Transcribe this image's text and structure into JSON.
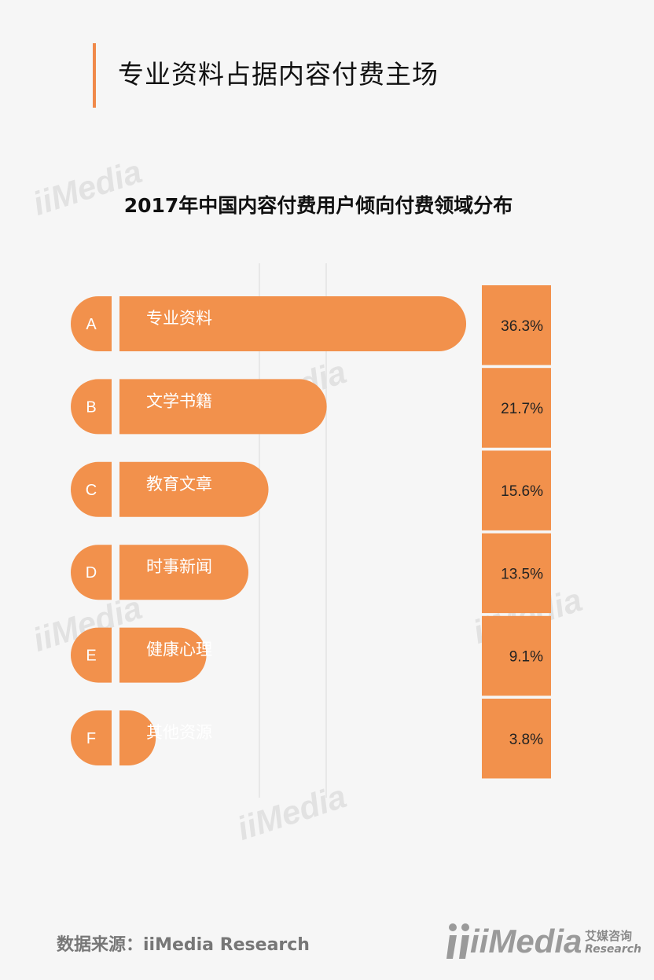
{
  "header": {
    "title": "专业资料占据内容付费主场"
  },
  "watermark": "iiMedia",
  "footer": {
    "source": "数据来源：iiMedia Research",
    "logo_main": "iiMedia",
    "logo_cn": "艾媒咨询",
    "logo_en": "Research"
  },
  "colors": {
    "accent": "#f0894a",
    "bar": "#f2914c",
    "value_box": "#f2914c"
  },
  "chart_data": {
    "type": "bar",
    "orientation": "horizontal",
    "title": "2017年中国内容付费用户倾向付费领域分布",
    "letters": [
      "A",
      "B",
      "C",
      "D",
      "E",
      "F"
    ],
    "categories": [
      "专业资料",
      "文学书籍",
      "教育文章",
      "时事新闻",
      "健康心理",
      "其他资源"
    ],
    "values": [
      36.3,
      21.7,
      15.6,
      13.5,
      9.1,
      3.8
    ],
    "value_labels": [
      "36.3%",
      "21.7%",
      "15.6%",
      "13.5%",
      "9.1%",
      "3.8%"
    ],
    "unit": "%",
    "grid": true
  }
}
